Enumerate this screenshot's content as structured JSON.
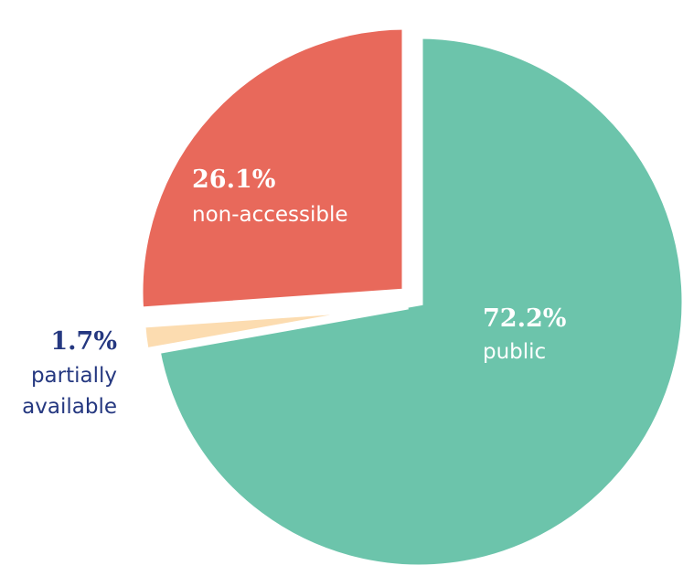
{
  "chart_data": {
    "type": "pie",
    "slices": [
      {
        "value": 72.2,
        "value_label": "72.2%",
        "label": "public",
        "color": "#6cc4ab",
        "text_color": "#ffffff",
        "exploded": false
      },
      {
        "value": 1.7,
        "value_label": "1.7%",
        "label_lines": [
          "partially",
          "available"
        ],
        "color": "#fcdcb0",
        "text_color": "#253880",
        "exploded": true
      },
      {
        "value": 26.1,
        "value_label": "26.1%",
        "label": "non-accessible",
        "color": "#e8695b",
        "text_color": "#ffffff",
        "exploded": true
      }
    ],
    "background": "#ffffff"
  }
}
